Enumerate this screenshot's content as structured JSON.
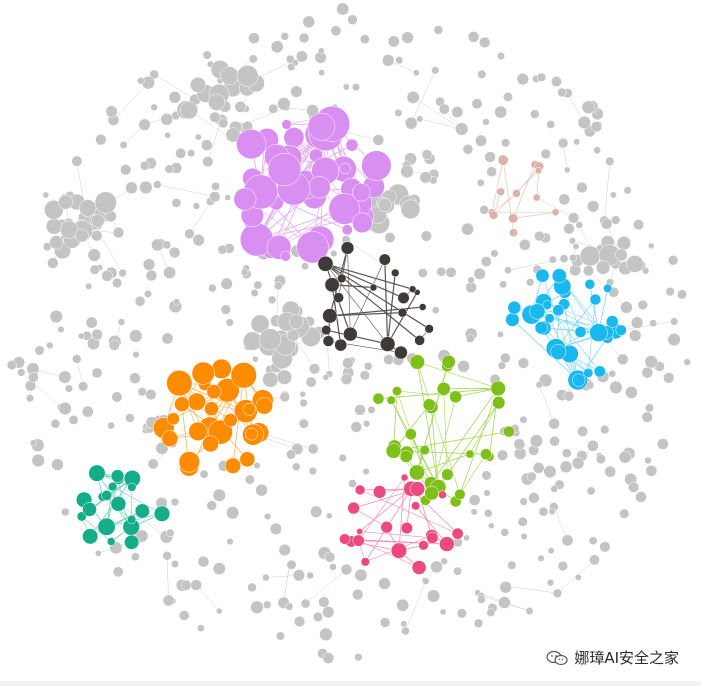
{
  "figure": {
    "type": "network-graph",
    "background": "#ffffff",
    "edge_color": "#cfcfcf",
    "default_node_color": "#c4c4c4"
  },
  "clusters": [
    {
      "name": "purple-cluster",
      "color": "#d98ef2",
      "edge_color": "#e2a9f4"
    },
    {
      "name": "dark-cluster",
      "color": "#3f3a37",
      "edge_color": "#5a5552"
    },
    {
      "name": "cyan-cluster",
      "color": "#19b8ee",
      "edge_color": "#7fd6f5"
    },
    {
      "name": "orange-cluster",
      "color": "#ff8c00",
      "edge_color": "#ffb45c"
    },
    {
      "name": "green-cluster",
      "color": "#7fbf1a",
      "edge_color": "#a6d65a"
    },
    {
      "name": "teal-cluster",
      "color": "#14ad8a",
      "edge_color": "#6fd0b9"
    },
    {
      "name": "pink-cluster",
      "color": "#ea4a7e",
      "edge_color": "#f090b0"
    },
    {
      "name": "brown-cluster",
      "color": "#d9b3aa",
      "edge_color": "#e6cbc4"
    }
  ],
  "watermark": {
    "text": "娜璋AI安全之家",
    "icon": "wechat-icon"
  }
}
